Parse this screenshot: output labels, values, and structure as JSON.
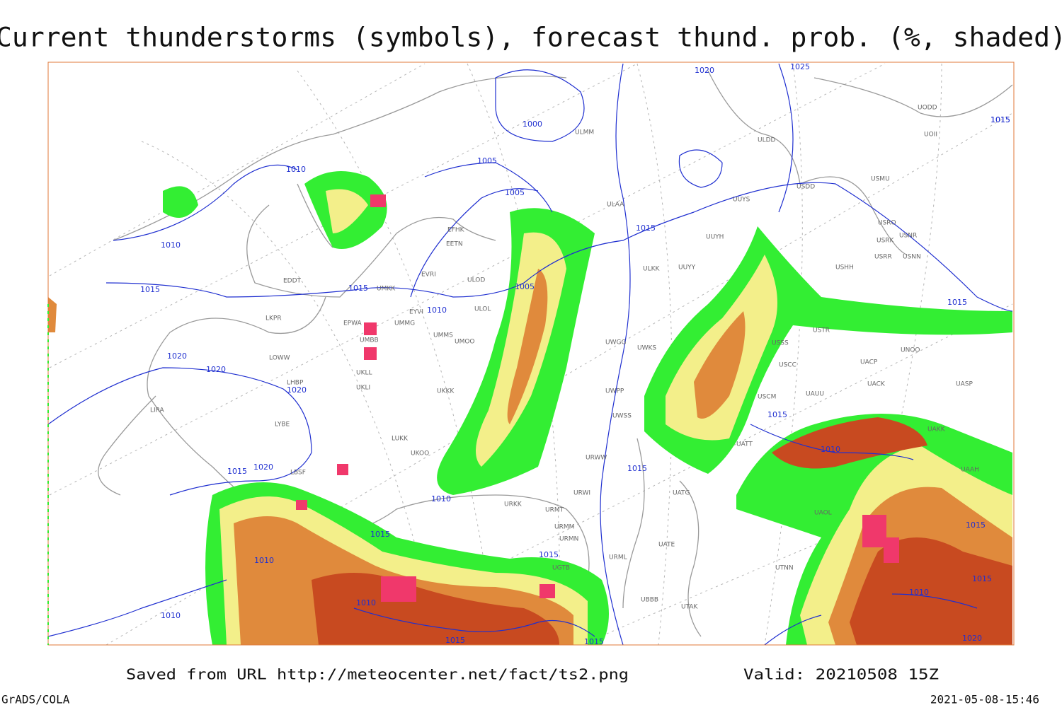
{
  "title": "Current thunderstorms (symbols), forecast thund. prob. (%, shaded)",
  "isobar_labels": [
    "1020",
    "1025",
    "1015",
    "1000",
    "1005",
    "1005",
    "1010",
    "1010",
    "1015",
    "1005",
    "1010",
    "1015",
    "1020",
    "1020",
    "1020",
    "1015",
    "1015",
    "1015",
    "1010",
    "1020",
    "1015",
    "1010",
    "1015",
    "1015",
    "1010",
    "1015",
    "1015",
    "1010",
    "1010",
    "1015",
    "1015",
    "1015",
    "1010",
    "1020",
    "1015"
  ],
  "stations": [
    "ULMM",
    "ULDD",
    "UODD",
    "UOII",
    "USMU",
    "USDD",
    "UUYS",
    "ULAA",
    "USRO",
    "USNR",
    "USRK",
    "USNN",
    "USRR",
    "UUYH",
    "EFHK",
    "EETN",
    "UUYY",
    "ULKK",
    "USHH",
    "EVRI",
    "ULOD",
    "EDDT",
    "UMKK",
    "ULOL",
    "EYVI",
    "LKPR",
    "EPWA",
    "UMMG",
    "UMMS",
    "UMOO",
    "UMBB",
    "USSS",
    "USTR",
    "UWGG",
    "UWKS",
    "UNOO",
    "LOWW",
    "UKLL",
    "UKLI",
    "LHBP",
    "USCC",
    "UACP",
    "UACK",
    "UASP",
    "UWPP",
    "UKKK",
    "UWSS",
    "USCM",
    "UAUU",
    "LIRA",
    "LYBE",
    "LUKK",
    "UKOO",
    "URWW",
    "UATT",
    "UAKK",
    "UAAH",
    "LBSF",
    "URWI",
    "UATG",
    "URKK",
    "URMT",
    "URMM",
    "URMN",
    "UATE",
    "URML",
    "UTNN",
    "UBBB",
    "UTAK",
    "UGTB",
    "UAOL"
  ],
  "footer": {
    "saved": "Saved from URL http://meteocenter.net/fact/ts2.png",
    "valid": "Valid: 20210508 15Z",
    "software": "GrADS/COLA",
    "timestamp": "2021-05-08-15:46"
  }
}
